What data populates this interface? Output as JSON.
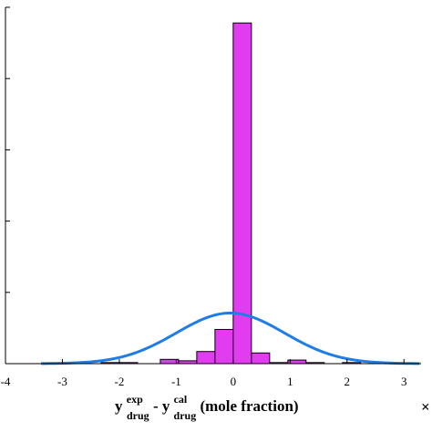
{
  "chart_data": {
    "type": "bar",
    "bin_width": 0.32,
    "bins": [
      {
        "x0": -2.32,
        "value": 0.015
      },
      {
        "x0": -2.0,
        "value": 0.015
      },
      {
        "x0": -1.28,
        "value": 0.06
      },
      {
        "x0": -0.96,
        "value": 0.04
      },
      {
        "x0": -0.64,
        "value": 0.17
      },
      {
        "x0": -0.32,
        "value": 0.48
      },
      {
        "x0": 0.0,
        "value": 4.78
      },
      {
        "x0": 0.32,
        "value": 0.15
      },
      {
        "x0": 0.64,
        "value": 0.015
      },
      {
        "x0": 0.96,
        "value": 0.05
      },
      {
        "x0": 1.28,
        "value": 0.015
      },
      {
        "x0": 1.92,
        "value": 0.015
      }
    ],
    "fit_curve": {
      "type": "normal",
      "mean": -0.05,
      "sd": 0.95,
      "peak": 0.71
    },
    "x_ticks": [
      "-4",
      "-3",
      "-2",
      "-1",
      "0",
      "1",
      "2",
      "3"
    ],
    "x_tick_values": [
      -4,
      -3,
      -2,
      -1,
      0,
      1,
      2,
      3
    ],
    "y_tick_values": [
      0,
      1,
      2,
      3,
      4,
      5
    ],
    "xlim": [
      -4.0,
      3.3
    ],
    "ylim": [
      0,
      5.0
    ],
    "xlabel": {
      "y1": "y",
      "sup1": "exp",
      "sub1": "drug",
      "minus": " - ",
      "y2": "y",
      "sup2": "cal",
      "sub2": "drug",
      "rest": " (mole fraction)"
    },
    "x_multiplier": "×",
    "grid": false,
    "colors": {
      "bar_fill": "#e23cf0",
      "bar_edge": "#000000",
      "curve": "#1f7ee6"
    }
  }
}
